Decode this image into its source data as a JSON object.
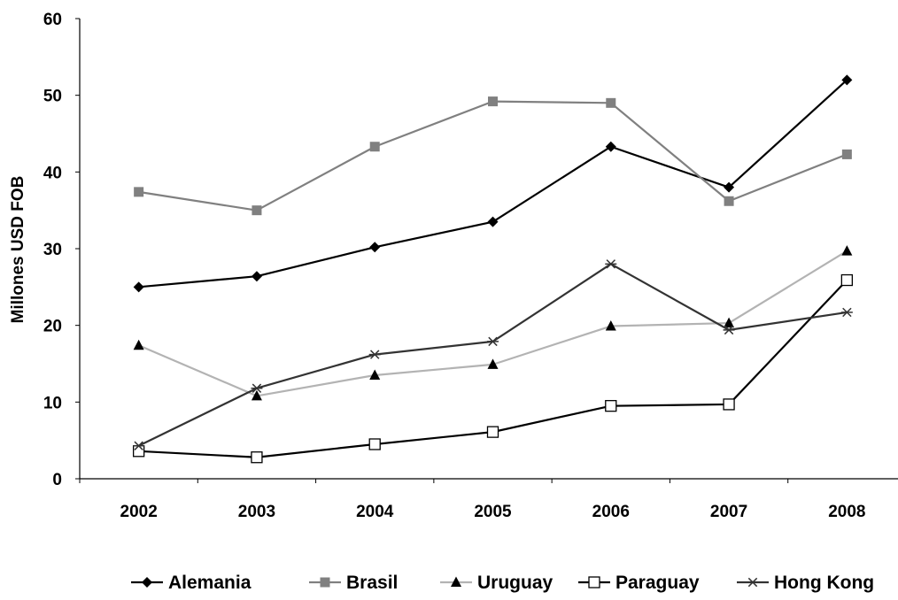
{
  "chart_data": {
    "type": "line",
    "title": "",
    "xlabel": "",
    "ylabel": "Millones USD FOB",
    "categories": [
      "2002",
      "2003",
      "2004",
      "2005",
      "2006",
      "2007",
      "2008"
    ],
    "ylim": [
      0,
      60
    ],
    "yticks": [
      0,
      10,
      20,
      30,
      40,
      50,
      60
    ],
    "grid": false,
    "legend": "bottom",
    "series": [
      {
        "name": "Alemania",
        "values": [
          25.0,
          26.4,
          30.2,
          33.5,
          43.3,
          38.0,
          52.0
        ],
        "color": "#000000",
        "marker": "diamond"
      },
      {
        "name": "Brasil",
        "values": [
          37.4,
          35.0,
          43.3,
          49.2,
          49.0,
          36.2,
          42.3
        ],
        "color": "#808080",
        "marker": "square"
      },
      {
        "name": "Uruguay",
        "values": [
          17.4,
          10.8,
          13.5,
          14.9,
          19.9,
          20.3,
          29.7
        ],
        "color": "#b3b3b3",
        "marker": "triangle",
        "marker_color": "#000000"
      },
      {
        "name": "Paraguay",
        "values": [
          3.6,
          2.8,
          4.5,
          6.1,
          9.5,
          9.7,
          25.9
        ],
        "color": "#000000",
        "marker": "open-square"
      },
      {
        "name": "Hong Kong",
        "values": [
          4.3,
          11.8,
          16.2,
          17.9,
          28.0,
          19.4,
          21.7
        ],
        "color": "#333333",
        "marker": "star"
      }
    ]
  }
}
